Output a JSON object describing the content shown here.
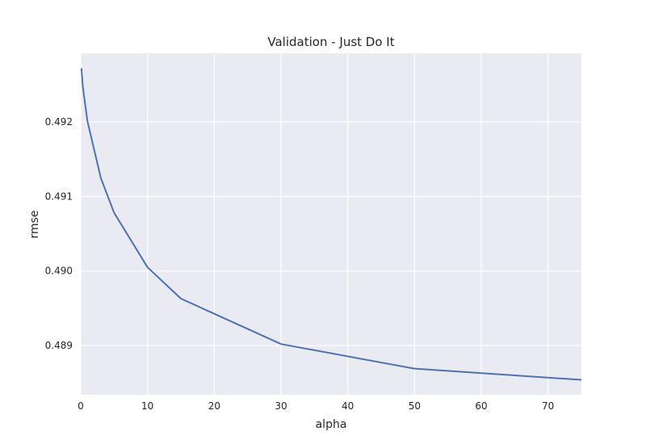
{
  "chart_data": {
    "type": "line",
    "title": "Validation - Just Do It",
    "xlabel": "alpha",
    "ylabel": "rmse",
    "xlim": [
      0,
      75
    ],
    "ylim": [
      0.48834,
      0.49292
    ],
    "xticks": [
      "0",
      "10",
      "20",
      "30",
      "40",
      "50",
      "60",
      "70"
    ],
    "xtick_values": [
      0,
      10,
      20,
      30,
      40,
      50,
      60,
      70
    ],
    "yticks": [
      "0.489",
      "0.490",
      "0.491",
      "0.492"
    ],
    "ytick_values": [
      0.489,
      0.49,
      0.491,
      0.492
    ],
    "grid": true,
    "series": [
      {
        "color": "#4c72b0",
        "x": [
          0.1,
          0.3,
          1,
          3,
          5,
          10,
          15,
          30,
          50,
          75
        ],
        "y": [
          0.49272,
          0.49248,
          0.49201,
          0.49125,
          0.49078,
          0.49005,
          0.48963,
          0.48902,
          0.48869,
          0.48854
        ]
      }
    ],
    "colors": {
      "plot_background": "#eaeaf2",
      "grid": "#ffffff",
      "text": "#262626"
    }
  }
}
